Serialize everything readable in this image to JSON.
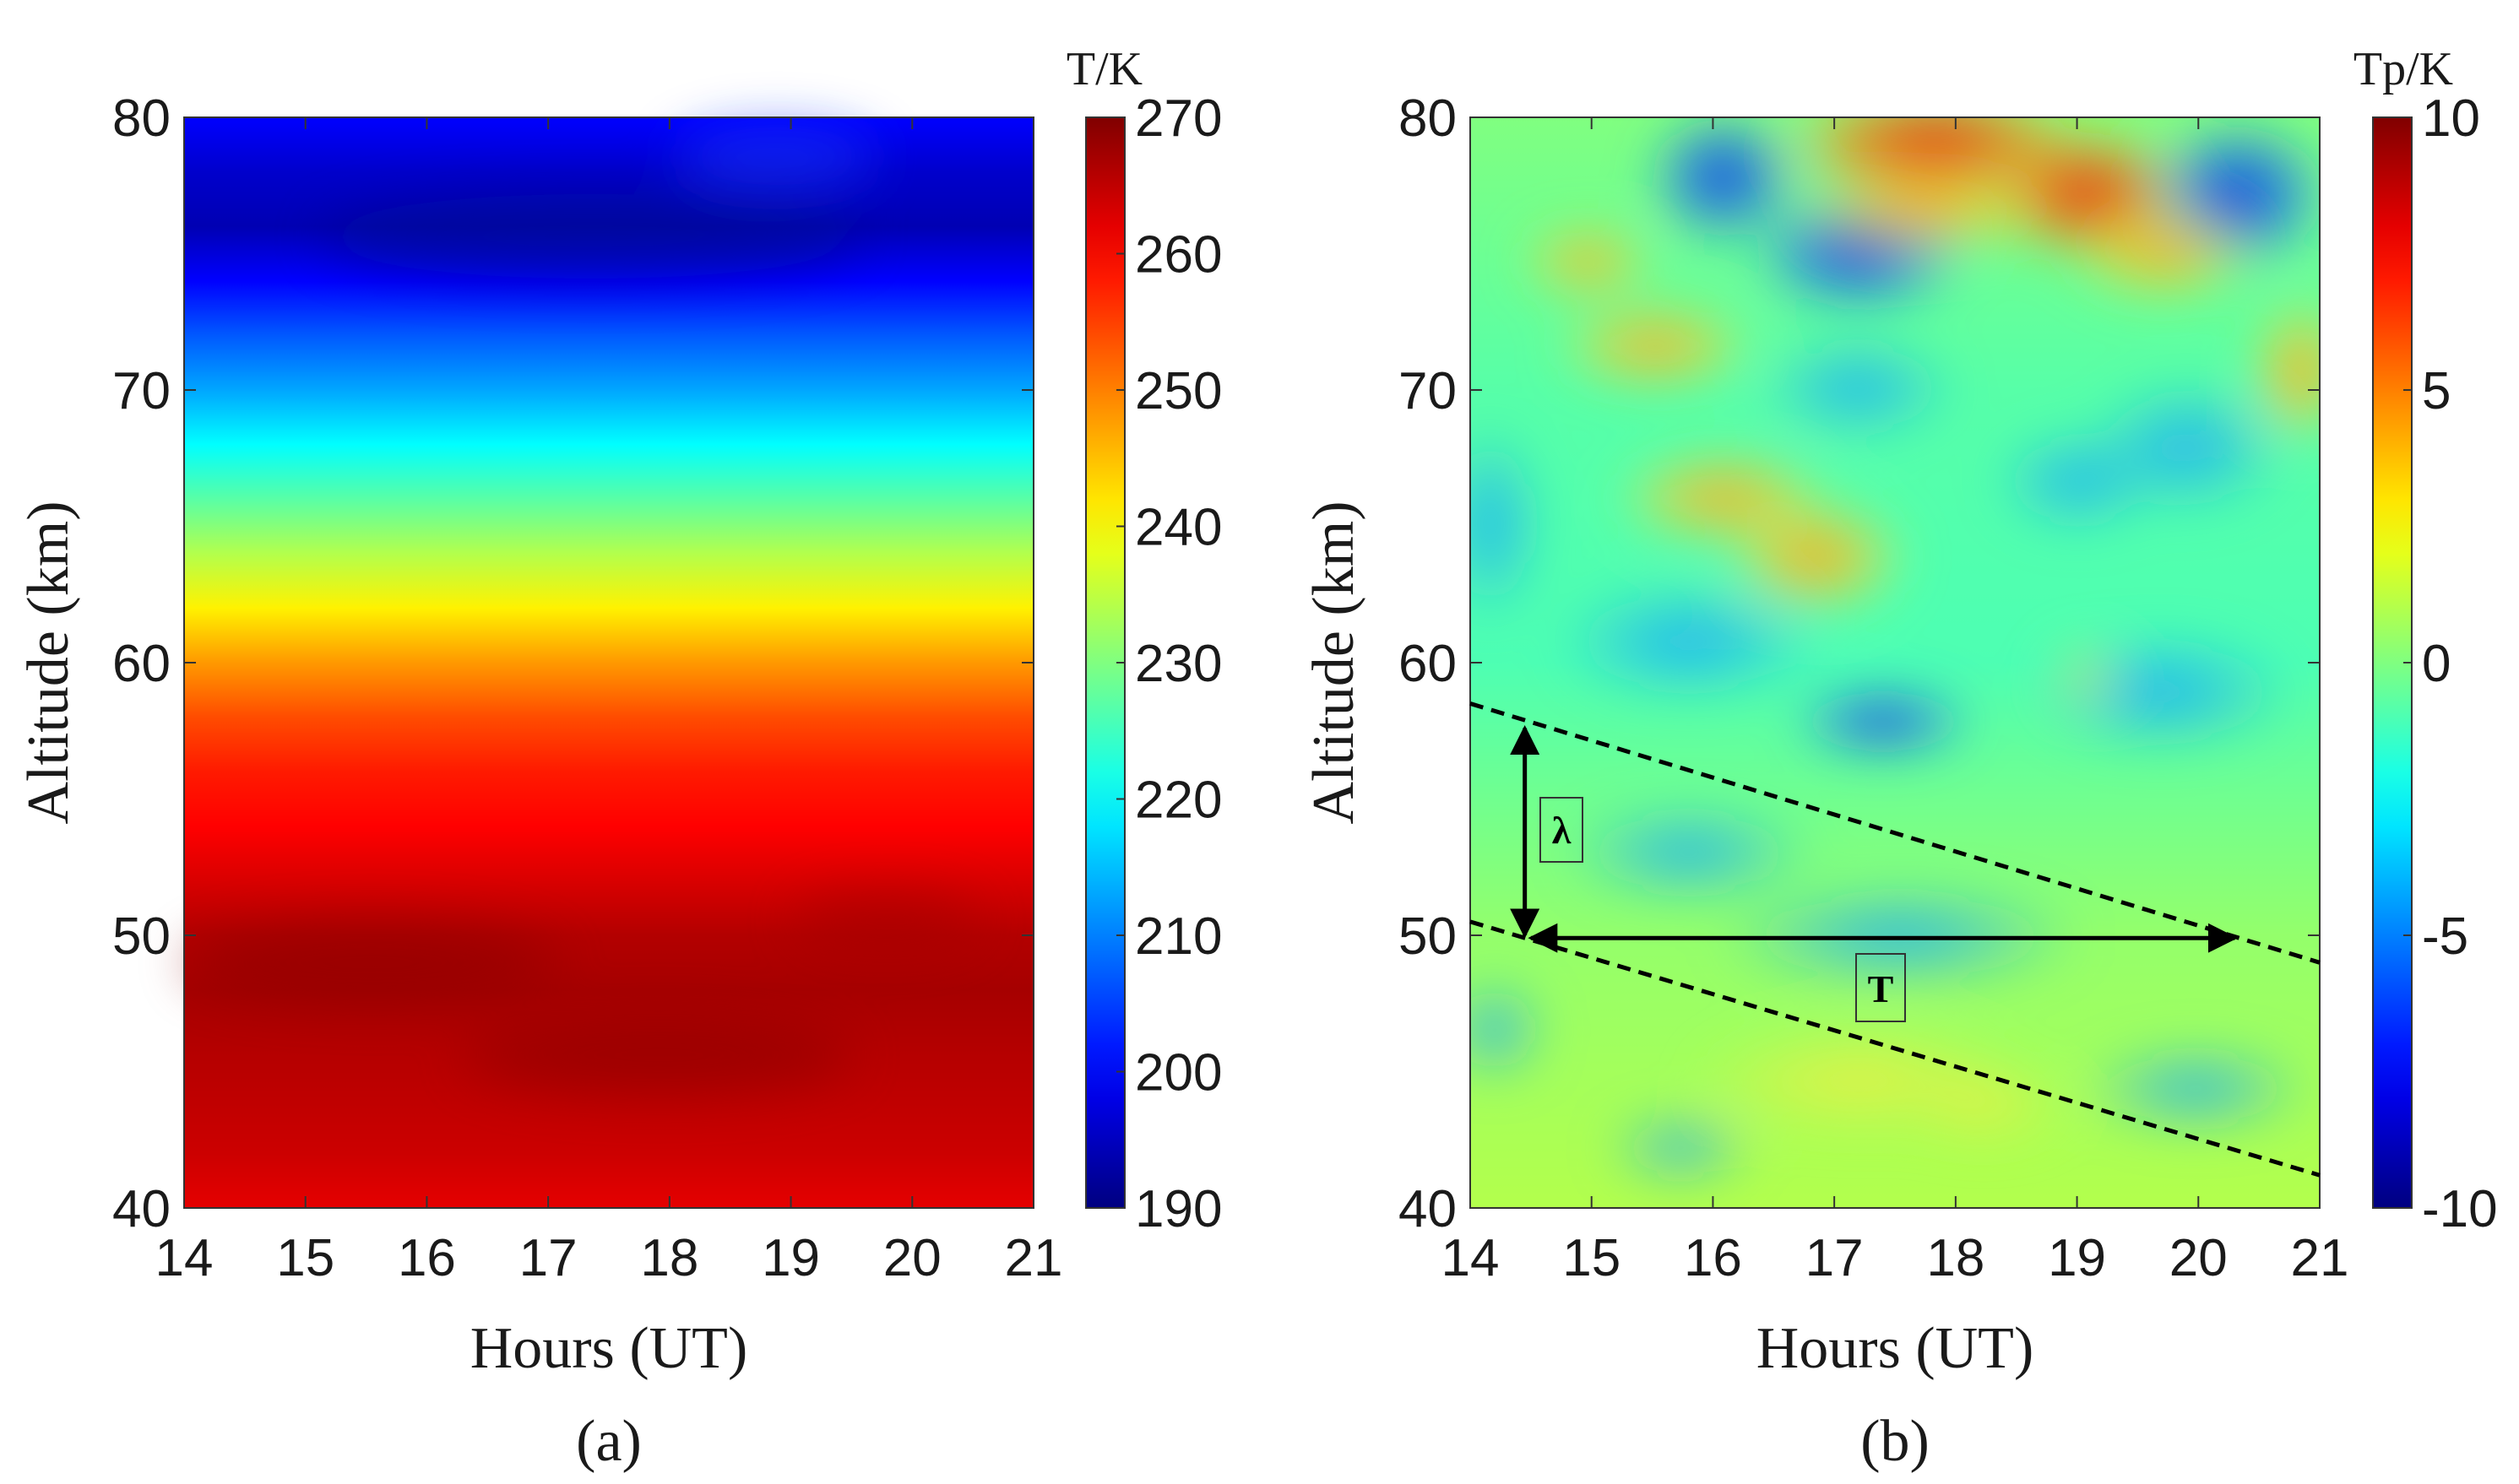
{
  "chart_data": [
    {
      "type": "heatmap",
      "panel_label": "(a)",
      "xlabel": "Hours (UT)",
      "ylabel": "Altitude (km)",
      "x_ticks": [
        "14",
        "15",
        "16",
        "17",
        "18",
        "19",
        "20",
        "21"
      ],
      "y_ticks": [
        "40",
        "50",
        "60",
        "70",
        "80"
      ],
      "xlim": [
        14,
        21
      ],
      "ylim": [
        40,
        80
      ],
      "colorbar": {
        "label": "T/K",
        "range": [
          190,
          270
        ],
        "ticks": [
          "190",
          "200",
          "210",
          "220",
          "230",
          "240",
          "250",
          "260",
          "270"
        ]
      },
      "profile": [
        [
          40,
          262
        ],
        [
          42,
          264
        ],
        [
          44,
          265
        ],
        [
          46,
          266
        ],
        [
          48,
          267
        ],
        [
          50,
          266
        ],
        [
          52,
          263
        ],
        [
          54,
          260
        ],
        [
          56,
          258
        ],
        [
          58,
          254
        ],
        [
          60,
          248
        ],
        [
          62,
          241
        ],
        [
          64,
          234
        ],
        [
          66,
          227
        ],
        [
          68,
          220
        ],
        [
          70,
          213
        ],
        [
          72,
          207
        ],
        [
          74,
          200
        ],
        [
          76,
          194
        ],
        [
          78,
          196
        ],
        [
          80,
          200
        ]
      ]
    },
    {
      "type": "heatmap",
      "panel_label": "(b)",
      "xlabel": "Hours (UT)",
      "ylabel": "Altitude (km)",
      "x_ticks": [
        "14",
        "15",
        "16",
        "17",
        "18",
        "19",
        "20",
        "21"
      ],
      "y_ticks": [
        "40",
        "50",
        "60",
        "70",
        "80"
      ],
      "xlim": [
        14,
        21
      ],
      "ylim": [
        40,
        80
      ],
      "colorbar": {
        "label": "Tp/K",
        "range": [
          -10,
          10
        ],
        "ticks": [
          "-10",
          "-5",
          "0",
          "5",
          "10"
        ]
      },
      "annotations": {
        "lambda_label": "λ",
        "period_label": "T",
        "dashed_lines": [
          {
            "from": [
              14,
              58.5
            ],
            "to": [
              21,
              49
            ]
          },
          {
            "from": [
              14,
              50.5
            ],
            "to": [
              21,
              41.2
            ]
          }
        ],
        "lambda_arrow": {
          "x": 14.45,
          "y_from": 50,
          "y_to": 57.6
        },
        "period_arrow": {
          "y": 49.9,
          "x_from": 14.5,
          "x_to": 20.3
        }
      }
    }
  ]
}
